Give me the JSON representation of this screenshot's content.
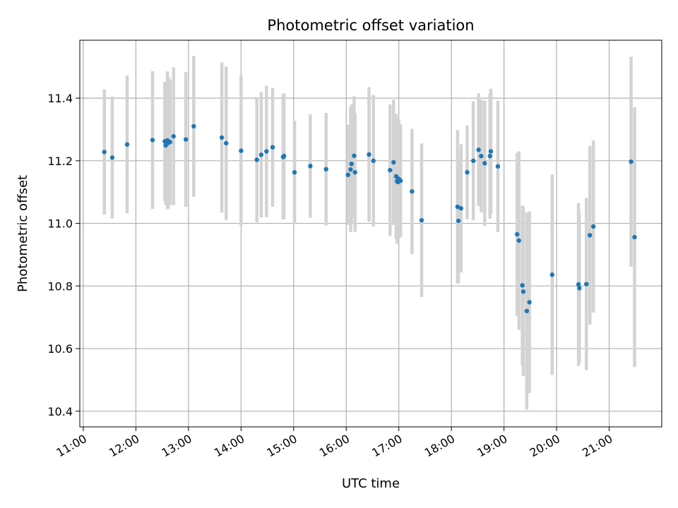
{
  "chart_data": {
    "type": "scatter",
    "title": "Photometric offset variation",
    "xlabel": "UTC time",
    "ylabel": "Photometric offset",
    "xlim": [
      "10:56",
      "22:00"
    ],
    "ylim": [
      10.35,
      11.585
    ],
    "grid": true,
    "x_ticks": [
      "11:00",
      "12:00",
      "13:00",
      "14:00",
      "15:00",
      "16:00",
      "17:00",
      "18:00",
      "19:00",
      "20:00",
      "21:00"
    ],
    "y_ticks": [
      10.4,
      10.6,
      10.8,
      11.0,
      11.2,
      11.4
    ],
    "marker_color": "#1f77b4",
    "errorbar_color": "#d3d3d3",
    "series": [
      {
        "x": [
          "11:24",
          "11:33",
          "11:50",
          "12:19",
          "12:33",
          "12:34",
          "12:36",
          "12:37",
          "12:39",
          "12:43",
          "12:57",
          "13:06",
          "13:38",
          "13:43",
          "14:00",
          "14:18",
          "14:23",
          "14:29",
          "14:36",
          "14:48",
          "14:49",
          "15:01",
          "15:19",
          "15:37",
          "16:02",
          "16:05",
          "16:06",
          "16:09",
          "16:10",
          "16:26",
          "16:31",
          "16:50",
          "16:54",
          "16:57",
          "16:58",
          "16:59",
          "17:00",
          "17:02",
          "17:15",
          "17:26",
          "18:07",
          "18:08",
          "18:11",
          "18:18",
          "18:25",
          "18:31",
          "18:34",
          "18:38",
          "18:44",
          "18:45",
          "18:53",
          "19:15",
          "19:17",
          "19:21",
          "19:22",
          "19:26",
          "19:29",
          "19:55",
          "20:25",
          "20:26",
          "20:34",
          "20:38",
          "20:42",
          "21:25",
          "21:29"
        ],
        "y": [
          11.228,
          11.21,
          11.252,
          11.266,
          11.262,
          11.249,
          11.265,
          11.257,
          11.26,
          11.278,
          11.268,
          11.31,
          11.274,
          11.256,
          11.232,
          11.203,
          11.219,
          11.23,
          11.243,
          11.212,
          11.215,
          11.163,
          11.183,
          11.173,
          11.155,
          11.172,
          11.19,
          11.216,
          11.163,
          11.22,
          11.2,
          11.17,
          11.195,
          11.15,
          11.135,
          11.132,
          11.142,
          11.136,
          11.102,
          11.01,
          11.053,
          11.008,
          11.048,
          11.163,
          11.2,
          11.235,
          11.215,
          11.192,
          11.215,
          11.23,
          11.182,
          10.965,
          10.945,
          10.802,
          10.782,
          10.72,
          10.748,
          10.836,
          10.805,
          10.793,
          10.806,
          10.962,
          10.99,
          11.197,
          10.956
        ],
        "yerr": [
          0.2,
          0.195,
          0.22,
          0.22,
          0.19,
          0.19,
          0.22,
          0.21,
          0.2,
          0.22,
          0.215,
          0.225,
          0.24,
          0.245,
          0.24,
          0.2,
          0.2,
          0.21,
          0.19,
          0.2,
          0.2,
          0.165,
          0.165,
          0.18,
          0.16,
          0.2,
          0.19,
          0.19,
          0.19,
          0.215,
          0.21,
          0.21,
          0.2,
          0.2,
          0.2,
          0.19,
          0.19,
          0.18,
          0.2,
          0.245,
          0.245,
          0.2,
          0.205,
          0.15,
          0.19,
          0.18,
          0.18,
          0.2,
          0.2,
          0.2,
          0.21,
          0.26,
          0.285,
          0.255,
          0.27,
          0.315,
          0.29,
          0.32,
          0.26,
          0.24,
          0.275,
          0.285,
          0.275,
          0.335,
          0.415
        ]
      }
    ]
  }
}
